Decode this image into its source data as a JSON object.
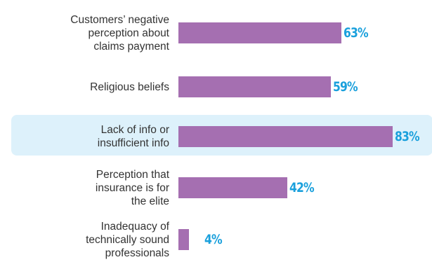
{
  "chart_data": {
    "type": "bar",
    "orientation": "horizontal",
    "categories": [
      "Customers’ negative perception about claims payment",
      "Religious beliefs",
      "Lack of info or insufficient info",
      "Perception that insurance is for the elite",
      "Inadequacy of technically sound professionals"
    ],
    "category_lines": [
      [
        "Customers’ negative",
        "perception about",
        "claims payment"
      ],
      [
        "Religious beliefs"
      ],
      [
        "Lack of info or",
        "insufficient info"
      ],
      [
        "Perception that",
        "insurance is for",
        "the elite"
      ],
      [
        "Inadequacy of",
        "technically sound",
        "professionals"
      ]
    ],
    "values": [
      63,
      59,
      83,
      42,
      4
    ],
    "value_labels": [
      "63%",
      "59%",
      "83%",
      "42%",
      "4%"
    ],
    "xlim": [
      0,
      100
    ],
    "highlighted_index": 2,
    "grid": false,
    "legend": "none"
  },
  "colors": {
    "bar": "#a56fb1",
    "value_label": "#1aa0dc",
    "highlight_band": "#ddf1fb",
    "category_text": "#333333"
  }
}
